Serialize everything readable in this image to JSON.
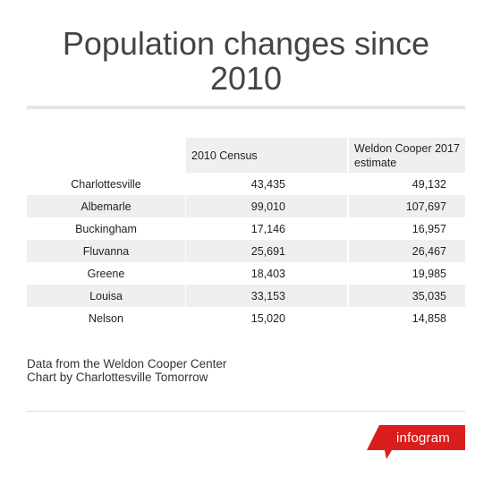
{
  "title": "Population changes since 2010",
  "chart_data": {
    "type": "table",
    "title": "Population changes since 2010",
    "columns": [
      "",
      "2010 Census",
      "Weldon Cooper 2017 estimate"
    ],
    "rows": [
      {
        "name": "Charlottesville",
        "census_2010": "43,435",
        "estimate_2017": "49,132"
      },
      {
        "name": "Albemarle",
        "census_2010": "99,010",
        "estimate_2017": "107,697"
      },
      {
        "name": "Buckingham",
        "census_2010": "17,146",
        "estimate_2017": "16,957"
      },
      {
        "name": "Fluvanna",
        "census_2010": "25,691",
        "estimate_2017": "26,467"
      },
      {
        "name": "Greene",
        "census_2010": "18,403",
        "estimate_2017": "19,985"
      },
      {
        "name": "Louisa",
        "census_2010": "33,153",
        "estimate_2017": "35,035"
      },
      {
        "name": "Nelson",
        "census_2010": "15,020",
        "estimate_2017": "14,858"
      }
    ]
  },
  "notes": {
    "source": "Data from the Weldon Cooper Center",
    "credit": "Chart by Charlottesville Tomorrow"
  },
  "brand": {
    "label": "infogram",
    "color": "#d91e1e"
  },
  "colors": {
    "row_shade": "#efefef",
    "title": "#444444"
  }
}
